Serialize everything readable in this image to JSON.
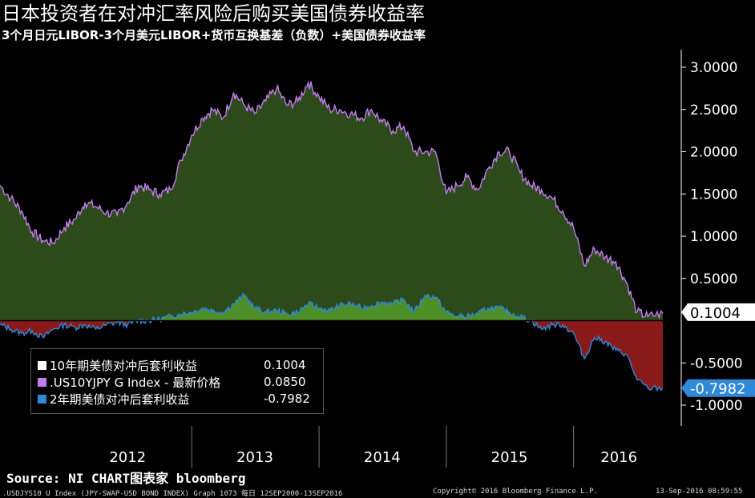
{
  "header": {
    "title": "日本投资者在对冲汇率风险后购买美国债券收益率",
    "subtitle": "3个月日元LIBOR-3个月美元LIBOR+货币互换基差（负数）+美国债券收益率"
  },
  "chart_data": {
    "type": "line",
    "ylim": [
      -1.0,
      3.0
    ],
    "yticks": [
      "3.0000",
      "2.5000",
      "2.0000",
      "1.5000",
      "1.0000",
      "0.5000",
      "-0.5000",
      "-1.0000"
    ],
    "ytick_values": [
      3.0,
      2.5,
      2.0,
      1.5,
      1.0,
      0.5,
      -0.5,
      -1.0
    ],
    "x_labels": [
      "2012",
      "2013",
      "2014",
      "2015",
      "2016"
    ],
    "last_value_labels": {
      "a": "0.1004",
      "b": "-0.7982"
    },
    "colors": {
      "hedged10": "#ffffff",
      "us10yjpy": "#c57ef0",
      "hedged2": "#2f88d8",
      "fill_upper": "#2d4a1a",
      "fill_pos": "#4e8f27",
      "fill_neg": "#8a1a1a",
      "panel_bg": "#000000",
      "label_a_bg": "#ffffff",
      "label_b_bg": "#2f88d8"
    },
    "series": [
      {
        "name": ".US10YJPY G Index - 最新价格",
        "key": "us10yjpy",
        "points": [
          [
            "2011-07-01",
            1.6
          ],
          [
            "2011-08-01",
            1.45
          ],
          [
            "2011-09-01",
            1.3
          ],
          [
            "2011-10-01",
            1.05
          ],
          [
            "2011-11-01",
            0.95
          ],
          [
            "2011-12-01",
            0.92
          ],
          [
            "2012-01-01",
            1.1
          ],
          [
            "2012-02-01",
            1.2
          ],
          [
            "2012-03-01",
            1.4
          ],
          [
            "2012-04-01",
            1.35
          ],
          [
            "2012-05-01",
            1.28
          ],
          [
            "2012-06-01",
            1.25
          ],
          [
            "2012-07-01",
            1.4
          ],
          [
            "2012-08-01",
            1.6
          ],
          [
            "2012-09-01",
            1.55
          ],
          [
            "2012-10-01",
            1.5
          ],
          [
            "2012-11-01",
            1.55
          ],
          [
            "2012-12-01",
            1.9
          ],
          [
            "2013-01-01",
            2.2
          ],
          [
            "2013-02-01",
            2.4
          ],
          [
            "2013-03-01",
            2.5
          ],
          [
            "2013-04-01",
            2.4
          ],
          [
            "2013-05-01",
            2.7
          ],
          [
            "2013-06-01",
            2.55
          ],
          [
            "2013-07-01",
            2.45
          ],
          [
            "2013-08-01",
            2.6
          ],
          [
            "2013-09-01",
            2.75
          ],
          [
            "2013-10-01",
            2.55
          ],
          [
            "2013-11-01",
            2.6
          ],
          [
            "2013-12-01",
            2.82
          ],
          [
            "2014-01-01",
            2.65
          ],
          [
            "2014-02-01",
            2.5
          ],
          [
            "2014-03-01",
            2.5
          ],
          [
            "2014-04-01",
            2.45
          ],
          [
            "2014-05-01",
            2.4
          ],
          [
            "2014-06-01",
            2.5
          ],
          [
            "2014-07-01",
            2.35
          ],
          [
            "2014-08-01",
            2.25
          ],
          [
            "2014-09-01",
            2.3
          ],
          [
            "2014-10-01",
            2.0
          ],
          [
            "2014-11-01",
            2.0
          ],
          [
            "2014-12-01",
            2.0
          ],
          [
            "2015-01-01",
            1.5
          ],
          [
            "2015-02-01",
            1.6
          ],
          [
            "2015-03-01",
            1.7
          ],
          [
            "2015-04-01",
            1.55
          ],
          [
            "2015-05-01",
            1.8
          ],
          [
            "2015-06-01",
            2.0
          ],
          [
            "2015-07-01",
            2.0
          ],
          [
            "2015-08-01",
            1.75
          ],
          [
            "2015-09-01",
            1.6
          ],
          [
            "2015-10-01",
            1.55
          ],
          [
            "2015-11-01",
            1.45
          ],
          [
            "2015-12-01",
            1.3
          ],
          [
            "2016-01-01",
            1.1
          ],
          [
            "2016-02-01",
            0.65
          ],
          [
            "2016-03-01",
            0.85
          ],
          [
            "2016-04-01",
            0.75
          ],
          [
            "2016-05-01",
            0.7
          ],
          [
            "2016-06-01",
            0.45
          ],
          [
            "2016-07-01",
            0.1
          ],
          [
            "2016-08-01",
            0.05
          ],
          [
            "2016-09-13",
            0.085
          ]
        ]
      },
      {
        "name": "2年期美债对冲后套利收益",
        "key": "hedged2",
        "points": [
          [
            "2011-07-01",
            -0.05
          ],
          [
            "2011-08-01",
            -0.1
          ],
          [
            "2011-09-01",
            -0.15
          ],
          [
            "2011-10-01",
            -0.12
          ],
          [
            "2011-11-01",
            -0.2
          ],
          [
            "2011-12-01",
            -0.1
          ],
          [
            "2012-01-01",
            -0.05
          ],
          [
            "2012-02-01",
            -0.08
          ],
          [
            "2012-03-01",
            -0.05
          ],
          [
            "2012-04-01",
            -0.1
          ],
          [
            "2012-05-01",
            -0.05
          ],
          [
            "2012-06-01",
            -0.02
          ],
          [
            "2012-07-01",
            -0.05
          ],
          [
            "2012-08-01",
            0.0
          ],
          [
            "2012-09-01",
            0.0
          ],
          [
            "2012-10-01",
            0.02
          ],
          [
            "2012-11-01",
            0.05
          ],
          [
            "2012-12-01",
            0.08
          ],
          [
            "2013-01-01",
            0.1
          ],
          [
            "2013-02-01",
            0.15
          ],
          [
            "2013-03-01",
            0.12
          ],
          [
            "2013-04-01",
            0.1
          ],
          [
            "2013-05-01",
            0.2
          ],
          [
            "2013-06-01",
            0.3
          ],
          [
            "2013-07-01",
            0.15
          ],
          [
            "2013-08-01",
            0.1
          ],
          [
            "2013-09-01",
            0.12
          ],
          [
            "2013-10-01",
            0.08
          ],
          [
            "2013-11-01",
            0.1
          ],
          [
            "2013-12-01",
            0.2
          ],
          [
            "2014-01-01",
            0.15
          ],
          [
            "2014-02-01",
            0.12
          ],
          [
            "2014-03-01",
            0.18
          ],
          [
            "2014-04-01",
            0.2
          ],
          [
            "2014-05-01",
            0.15
          ],
          [
            "2014-06-01",
            0.18
          ],
          [
            "2014-07-01",
            0.22
          ],
          [
            "2014-08-01",
            0.2
          ],
          [
            "2014-09-01",
            0.25
          ],
          [
            "2014-10-01",
            0.1
          ],
          [
            "2014-11-01",
            0.3
          ],
          [
            "2014-12-01",
            0.28
          ],
          [
            "2015-01-01",
            0.1
          ],
          [
            "2015-02-01",
            0.05
          ],
          [
            "2015-03-01",
            0.05
          ],
          [
            "2015-04-01",
            0.08
          ],
          [
            "2015-05-01",
            0.15
          ],
          [
            "2015-06-01",
            0.15
          ],
          [
            "2015-07-01",
            0.1
          ],
          [
            "2015-08-01",
            0.05
          ],
          [
            "2015-09-01",
            0.0
          ],
          [
            "2015-10-01",
            -0.1
          ],
          [
            "2015-11-01",
            -0.05
          ],
          [
            "2015-12-01",
            -0.05
          ],
          [
            "2016-01-01",
            -0.15
          ],
          [
            "2016-02-01",
            -0.45
          ],
          [
            "2016-03-01",
            -0.2
          ],
          [
            "2016-04-01",
            -0.25
          ],
          [
            "2016-05-01",
            -0.35
          ],
          [
            "2016-06-01",
            -0.4
          ],
          [
            "2016-07-01",
            -0.7
          ],
          [
            "2016-08-01",
            -0.8
          ],
          [
            "2016-09-13",
            -0.7982
          ]
        ]
      },
      {
        "name": "10年期美债对冲后套利收益",
        "key": "hedged10"
      }
    ],
    "last_value_a": 0.1004,
    "last_value_b": -0.7982,
    "x_start": "2011-07-01",
    "x_end": "2016-09-13"
  },
  "legend": {
    "items": [
      {
        "label": "10年期美债对冲后套利收益",
        "value": "0.1004",
        "color": "#ffffff"
      },
      {
        "label": ".US10YJPY G Index - 最新价格",
        "value": "0.0850",
        "color": "#c57ef0"
      },
      {
        "label": "2年期美债对冲后套利收益",
        "value": "-0.7982",
        "color": "#2f88d8"
      }
    ]
  },
  "source": "Source: NI CHART图表家 bloomberg",
  "footer": {
    "left": ".USDJYS10 U Index (JPY-SWAP-USD BOND INDEX) Graph 1073  每日 12SEP2000-13SEP2016",
    "center": "Copyright© 2016 Bloomberg Finance L.P.",
    "right": "13-Sep-2016 08:59:55"
  }
}
